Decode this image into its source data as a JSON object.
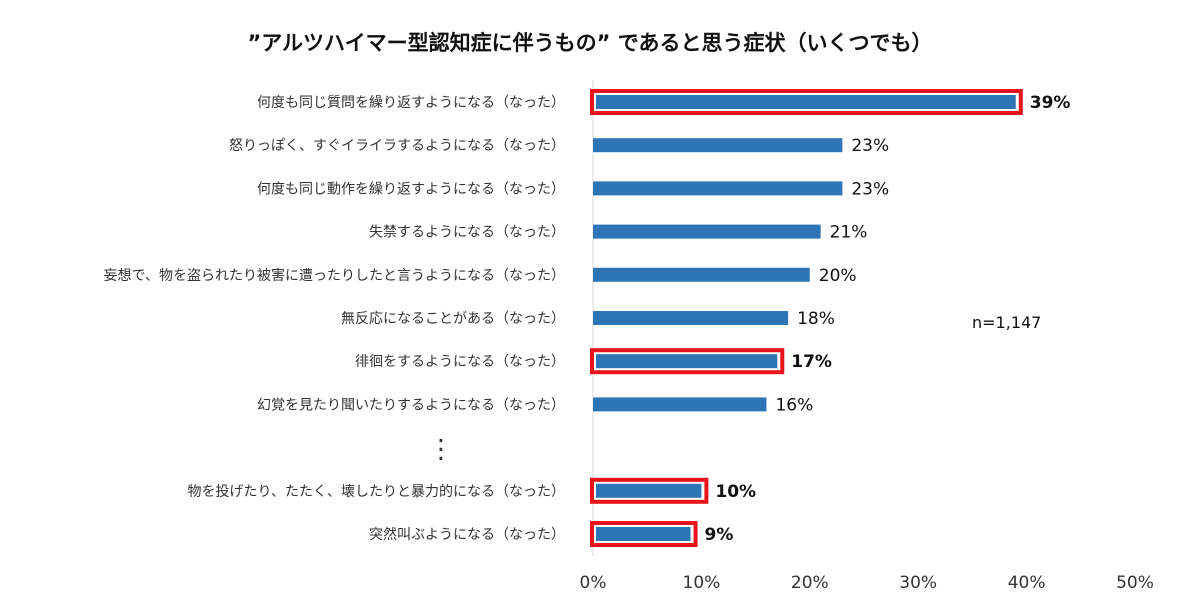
{
  "chart_data": {
    "type": "bar",
    "orientation": "horizontal",
    "title": "”アルツハイマー型認知症に伴うもの” であると思う症状（いくつでも）",
    "categories": [
      "何度も同じ質問を繰り返すようになる（なった）",
      "怒りっぽく、すぐイライラするようになる（なった）",
      "何度も同じ動作を繰り返すようになる（なった）",
      "失禁するようになる（なった）",
      "妄想で、物を盗られたり被害に遭ったりしたと言うようになる（なった）",
      "無反応になることがある（なった）",
      "徘徊をするようになる（なった）",
      "幻覚を見たり聞いたりするようになる（なった）",
      "物を投げたり、たたく、壊したりと暴力的になる（なった）",
      "突然叫ぶようになる（なった）"
    ],
    "values": [
      39,
      23,
      23,
      21,
      20,
      18,
      17,
      16,
      10,
      9
    ],
    "value_labels": [
      "39%",
      "23%",
      "23%",
      "21%",
      "20%",
      "18%",
      "17%",
      "16%",
      "10%",
      "9%"
    ],
    "highlighted": [
      true,
      false,
      false,
      false,
      false,
      false,
      true,
      false,
      true,
      true
    ],
    "omission_marker": "⋮",
    "omission_after_index": 7,
    "xlim": [
      0,
      50
    ],
    "x_ticks": [
      "0%",
      "10%",
      "20%",
      "30%",
      "40%",
      "50%"
    ],
    "annotation": "n=1,147",
    "grid": false,
    "legend": "none",
    "colors": {
      "bar": "#2e75b6",
      "highlight_border": "#e8141b",
      "axis": "#d9d9d9"
    }
  }
}
